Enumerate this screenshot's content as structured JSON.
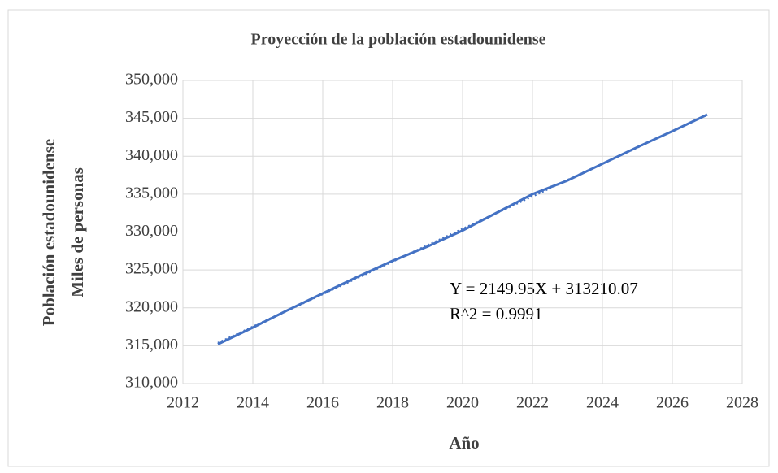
{
  "chart_data": {
    "type": "line",
    "title": "Proyección de la población estadounidense",
    "x_label": "Año",
    "y_label": [
      "Población estadounidense",
      "Miles de personas"
    ],
    "annotations": [
      "Y = 2149.95X + 313210.07",
      "R^2 = 0.9991"
    ],
    "x": [
      2013,
      2014,
      2015,
      2016,
      2017,
      2018,
      2019,
      2020,
      2021,
      2022,
      2023,
      2024,
      2025,
      2026,
      2027
    ],
    "series": [
      {
        "color": "#4472c4",
        "values": [
          315200,
          317400,
          319700,
          321900,
          324100,
          326200,
          328100,
          330200,
          332600,
          335000,
          336800,
          339000,
          341200,
          343300,
          345500
        ]
      },
      {
        "color": "#4472c4",
        "dashed": true,
        "values": [
          315360,
          317510,
          319660,
          321810,
          323960,
          326110,
          328260,
          330410,
          332560,
          334710,
          336860,
          339010,
          341160,
          343310,
          345460
        ]
      }
    ],
    "xlim": [
      2012,
      2028
    ],
    "xticks": [
      2012,
      2014,
      2016,
      2018,
      2020,
      2022,
      2024,
      2026,
      2028
    ],
    "ylim": [
      310000,
      350000
    ],
    "yticks": [
      {
        "value": 310000,
        "label": "310,000"
      },
      {
        "value": 315000,
        "label": "315,000"
      },
      {
        "value": 320000,
        "label": "320,000"
      },
      {
        "value": 325000,
        "label": "325,000"
      },
      {
        "value": 330000,
        "label": "330,000"
      },
      {
        "value": 335000,
        "label": "335,000"
      },
      {
        "value": 340000,
        "label": "340,000"
      },
      {
        "value": 345000,
        "label": "345,000"
      },
      {
        "value": 350000,
        "label": "350,000"
      }
    ],
    "grid": true
  }
}
